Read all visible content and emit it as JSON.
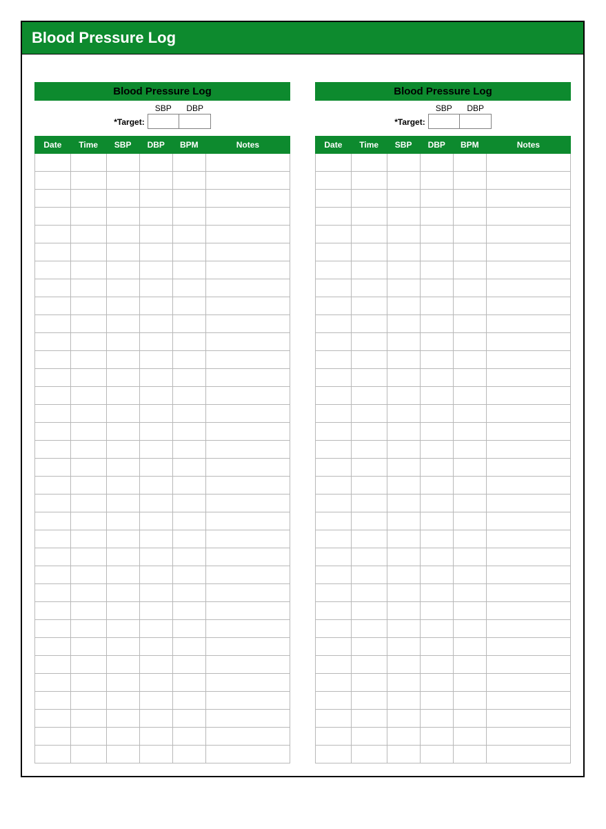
{
  "header": {
    "title": "Blood Pressure Log"
  },
  "colors": {
    "brand_green": "#0d8a2e",
    "header_text": "#ffffff",
    "panel_title_text": "#000000",
    "page_border": "#000000",
    "cell_border": "#b8b8b8",
    "target_box_border": "#808080",
    "background": "#ffffff"
  },
  "layout": {
    "row_count": 34,
    "panel_count": 2,
    "columns": [
      {
        "key": "date",
        "label": "Date",
        "width_pct": 14
      },
      {
        "key": "time",
        "label": "Time",
        "width_pct": 14
      },
      {
        "key": "sbp",
        "label": "SBP",
        "width_pct": 13
      },
      {
        "key": "dbp",
        "label": "DBP",
        "width_pct": 13
      },
      {
        "key": "bpm",
        "label": "BPM",
        "width_pct": 13
      },
      {
        "key": "notes",
        "label": "Notes",
        "width_pct": 33
      }
    ]
  },
  "panel": {
    "title": "Blood Pressure Log",
    "target_label": "*Target:",
    "target_fields": {
      "sbp": {
        "label": "SBP",
        "value": ""
      },
      "dbp": {
        "label": "DBP",
        "value": ""
      }
    }
  },
  "typography": {
    "main_title_fontsize": 22,
    "panel_title_fontsize": 15,
    "column_header_fontsize": 12,
    "target_fontsize": 12,
    "font_family": "Arial"
  }
}
